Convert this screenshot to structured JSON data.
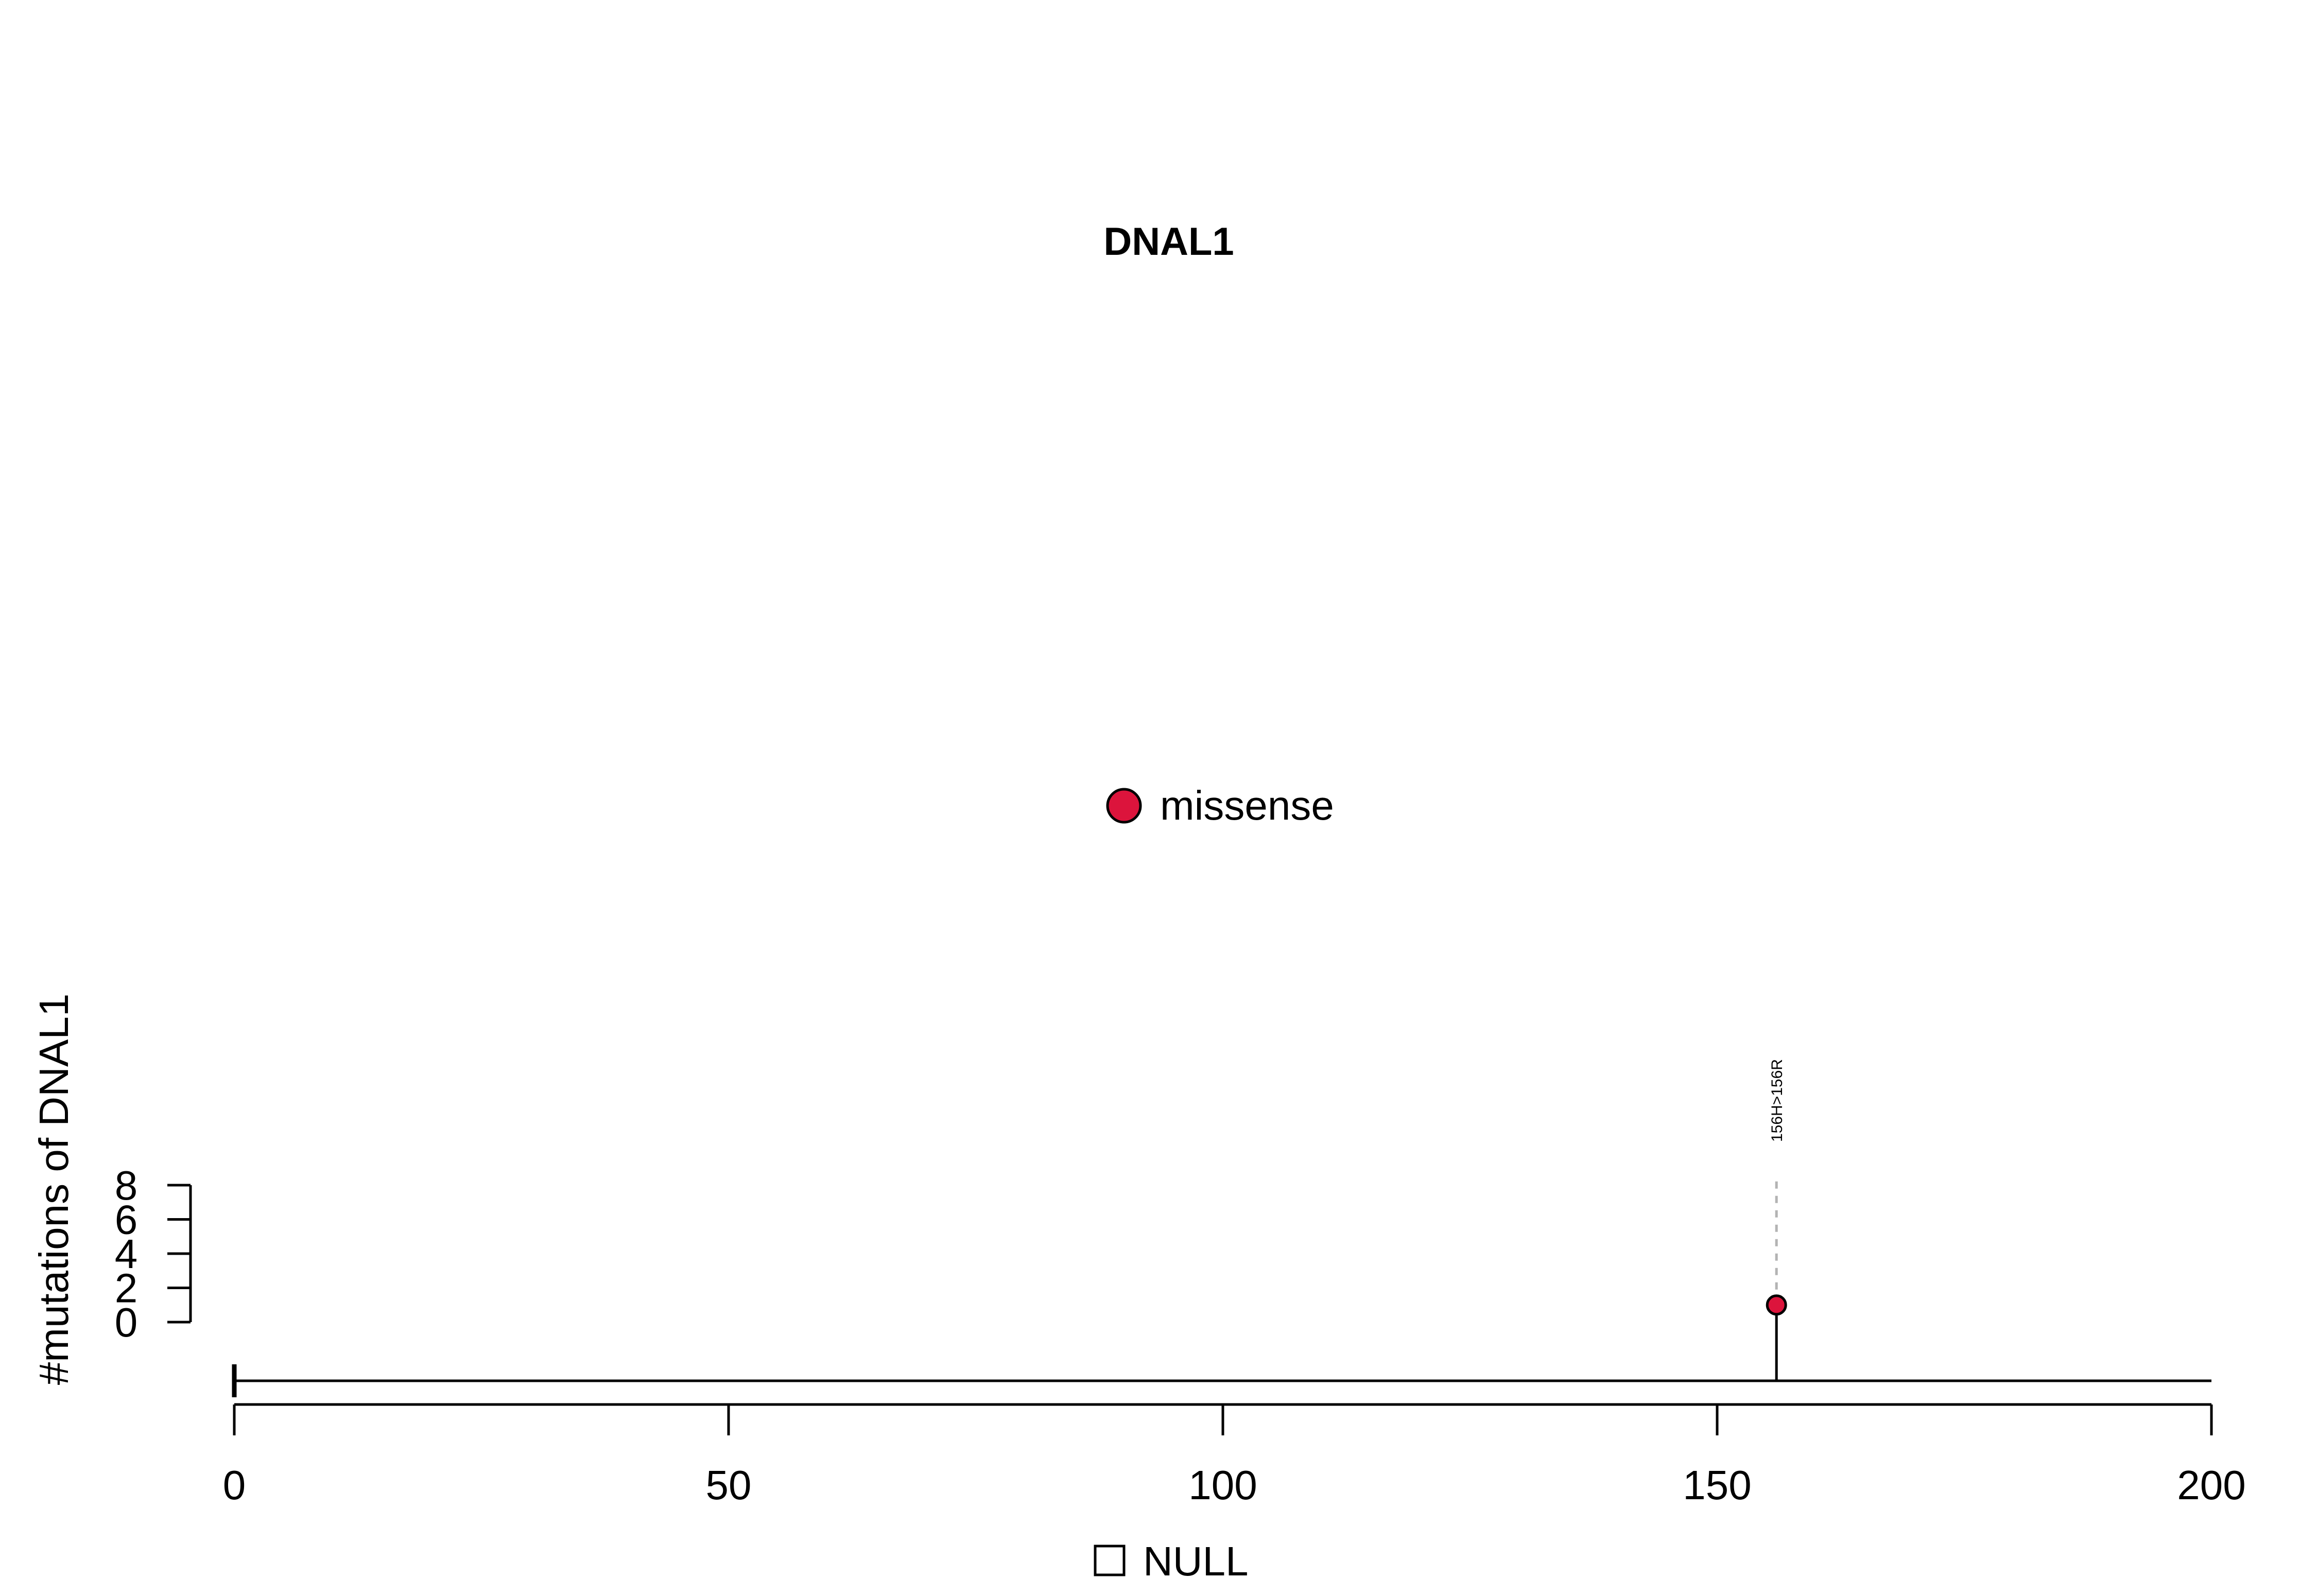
{
  "chart_data": {
    "type": "lollipop",
    "title": "DNAL1",
    "ylabel": "#mutations of DNAL1",
    "xlim": [
      0,
      200
    ],
    "x_ticks": [
      0,
      50,
      100,
      150,
      200
    ],
    "ylim": [
      0,
      8
    ],
    "y_ticks": [
      0,
      2,
      4,
      6,
      8
    ],
    "legend_top": {
      "label": "missense",
      "color": "#dc143c"
    },
    "legend_bottom": {
      "label": "NULL",
      "color": "#ffffff"
    },
    "mutations": [
      {
        "position": 156,
        "count": 1,
        "label": "156H>156R",
        "type": "missense",
        "color": "#dc143c"
      }
    ]
  }
}
